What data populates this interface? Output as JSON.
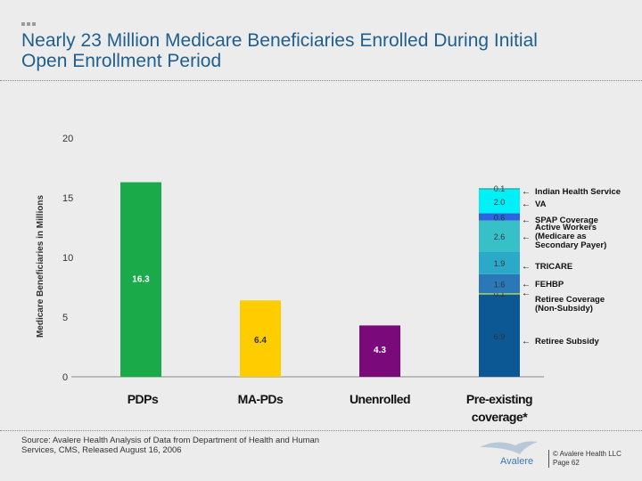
{
  "header": {
    "title": "Nearly 23 Million Medicare Beneficiaries Enrolled During Initial Open Enrollment Period"
  },
  "footer": {
    "source": "Source: Avalere Health Analysis of Data from Department of Health and Human Services, CMS, Released August 16, 2006",
    "logo_text": "Avalere",
    "copyright": "© Avalere Health LLC",
    "page": "Page 62"
  },
  "chart_data": {
    "type": "bar",
    "title": "",
    "ylabel": "Medicare Beneficiaries in Millions",
    "ylim": [
      0,
      20
    ],
    "yticks": [
      0,
      5,
      10,
      15,
      20
    ],
    "grid": false,
    "categories": [
      "PDPs",
      "MA-PDs",
      "Unenrolled",
      "Pre-existing coverage*"
    ],
    "bars": [
      {
        "category": "PDPs",
        "value": 16.3,
        "label": "16.3",
        "color": "#1aaa4a"
      },
      {
        "category": "MA-PDs",
        "value": 6.4,
        "label": "6.4",
        "color": "#ffcc00"
      },
      {
        "category": "Unenrolled",
        "value": 4.3,
        "label": "4.3",
        "color": "#7a0a7a"
      }
    ],
    "stacked": {
      "category": "Pre-existing coverage*",
      "segments": [
        {
          "name": "Retiree Subsidy",
          "value": 6.9,
          "label": "6.9",
          "color": "#0b5894"
        },
        {
          "name": "Retiree Coverage (Non-Subsidy)",
          "value": 0.1,
          "label": "0.1",
          "color": "#a8d040"
        },
        {
          "name": "FEHBP",
          "value": 1.6,
          "label": "1.6",
          "color": "#2a78b8"
        },
        {
          "name": "TRICARE",
          "value": 1.9,
          "label": "1.9",
          "color": "#2aaac8"
        },
        {
          "name": "Active Workers (Medicare as Secondary Payer)",
          "value": 2.6,
          "label": "2.6",
          "color": "#38c0c8"
        },
        {
          "name": "SPAP Coverage",
          "value": 0.6,
          "label": "0.6",
          "color": "#2f62e0"
        },
        {
          "name": "VA",
          "value": 2.0,
          "label": "2.0",
          "color": "#00f0f8"
        },
        {
          "name": "Indian Health Service",
          "value": 0.1,
          "label": "0.1",
          "color": "#20b0b0"
        }
      ]
    }
  }
}
